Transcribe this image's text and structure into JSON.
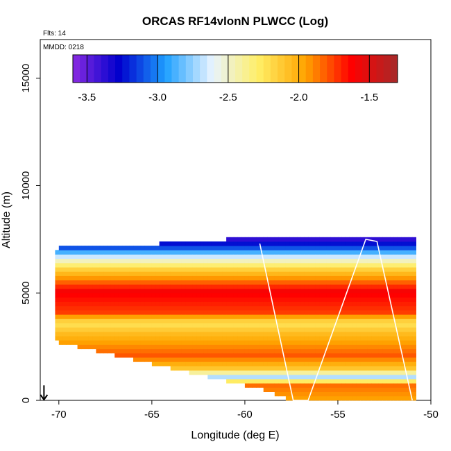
{
  "chart_data": {
    "type": "heatmap",
    "title": "ORCAS RF14vlonN PLWCC (Log)",
    "subtitle_flights": "Flts: 14",
    "subtitle_date": "MMDD: 0218",
    "xlabel": "Longitude (deg E)",
    "ylabel": "Altitude (m)",
    "xlim": [
      -71,
      -50
    ],
    "ylim": [
      0,
      16800
    ],
    "x_ticks": [
      -70,
      -65,
      -60,
      -55,
      -50
    ],
    "y_ticks": [
      0,
      5000,
      10000,
      15000
    ],
    "x_tick_labels": [
      "-70",
      "-65",
      "-60",
      "-55",
      "-50"
    ],
    "y_tick_labels": [
      "0",
      "5000",
      "10000",
      "15000"
    ],
    "colorbar": {
      "range": [
        -3.6,
        -1.3
      ],
      "ticks": [
        -3.5,
        -3.0,
        -2.5,
        -2.0,
        -1.5
      ],
      "tick_labels": [
        "-3.5",
        "-3.0",
        "-2.5",
        "-2.0",
        "-1.5"
      ],
      "colors": [
        "#8a2be2",
        "#0000cd",
        "#1ea0ff",
        "#e8f4ff",
        "#ffee66",
        "#ffa500",
        "#ff0000",
        "#a52a2a"
      ]
    },
    "cell_height_m": 200,
    "columns_top_m": [
      {
        "lon": -70.2,
        "top": 7000
      },
      {
        "lon": -64.7,
        "top": 7200
      },
      {
        "lon": -59.3,
        "top": 7500
      },
      {
        "lon": -51.3,
        "top": 7500
      }
    ],
    "columns_bottom_m": [
      {
        "lon": -70.2,
        "bottom": 2800
      },
      {
        "lon": -66.0,
        "bottom": 2000
      },
      {
        "lon": -62.0,
        "bottom": 1200
      },
      {
        "lon": -59.0,
        "bottom": 600
      },
      {
        "lon": -57.5,
        "bottom": 100
      },
      {
        "lon": -57.0,
        "bottom": 0
      },
      {
        "lon": -51.0,
        "bottom": 0
      }
    ],
    "value_profile": [
      {
        "alt": 0,
        "value": -1.95
      },
      {
        "alt": 600,
        "value": -1.85
      },
      {
        "alt": 1000,
        "value": -2.7
      },
      {
        "alt": 1400,
        "value": -2.1
      },
      {
        "alt": 2000,
        "value": -1.8
      },
      {
        "alt": 3000,
        "value": -2.05
      },
      {
        "alt": 3500,
        "value": -2.25
      },
      {
        "alt": 4000,
        "value": -1.75
      },
      {
        "alt": 5000,
        "value": -1.6
      },
      {
        "alt": 6000,
        "value": -2.15
      },
      {
        "alt": 6500,
        "value": -2.55
      },
      {
        "alt": 7000,
        "value": -3.1
      },
      {
        "alt": 7500,
        "value": -3.45
      }
    ],
    "flight_track": [
      [
        -59.2,
        7300
      ],
      [
        -57.4,
        0
      ],
      [
        -56.6,
        0
      ],
      [
        -53.5,
        7500
      ],
      [
        -52.9,
        7400
      ],
      [
        -51.0,
        0
      ]
    ],
    "north_arrow_lon": -70.8,
    "north_arrow_alt": 700
  }
}
